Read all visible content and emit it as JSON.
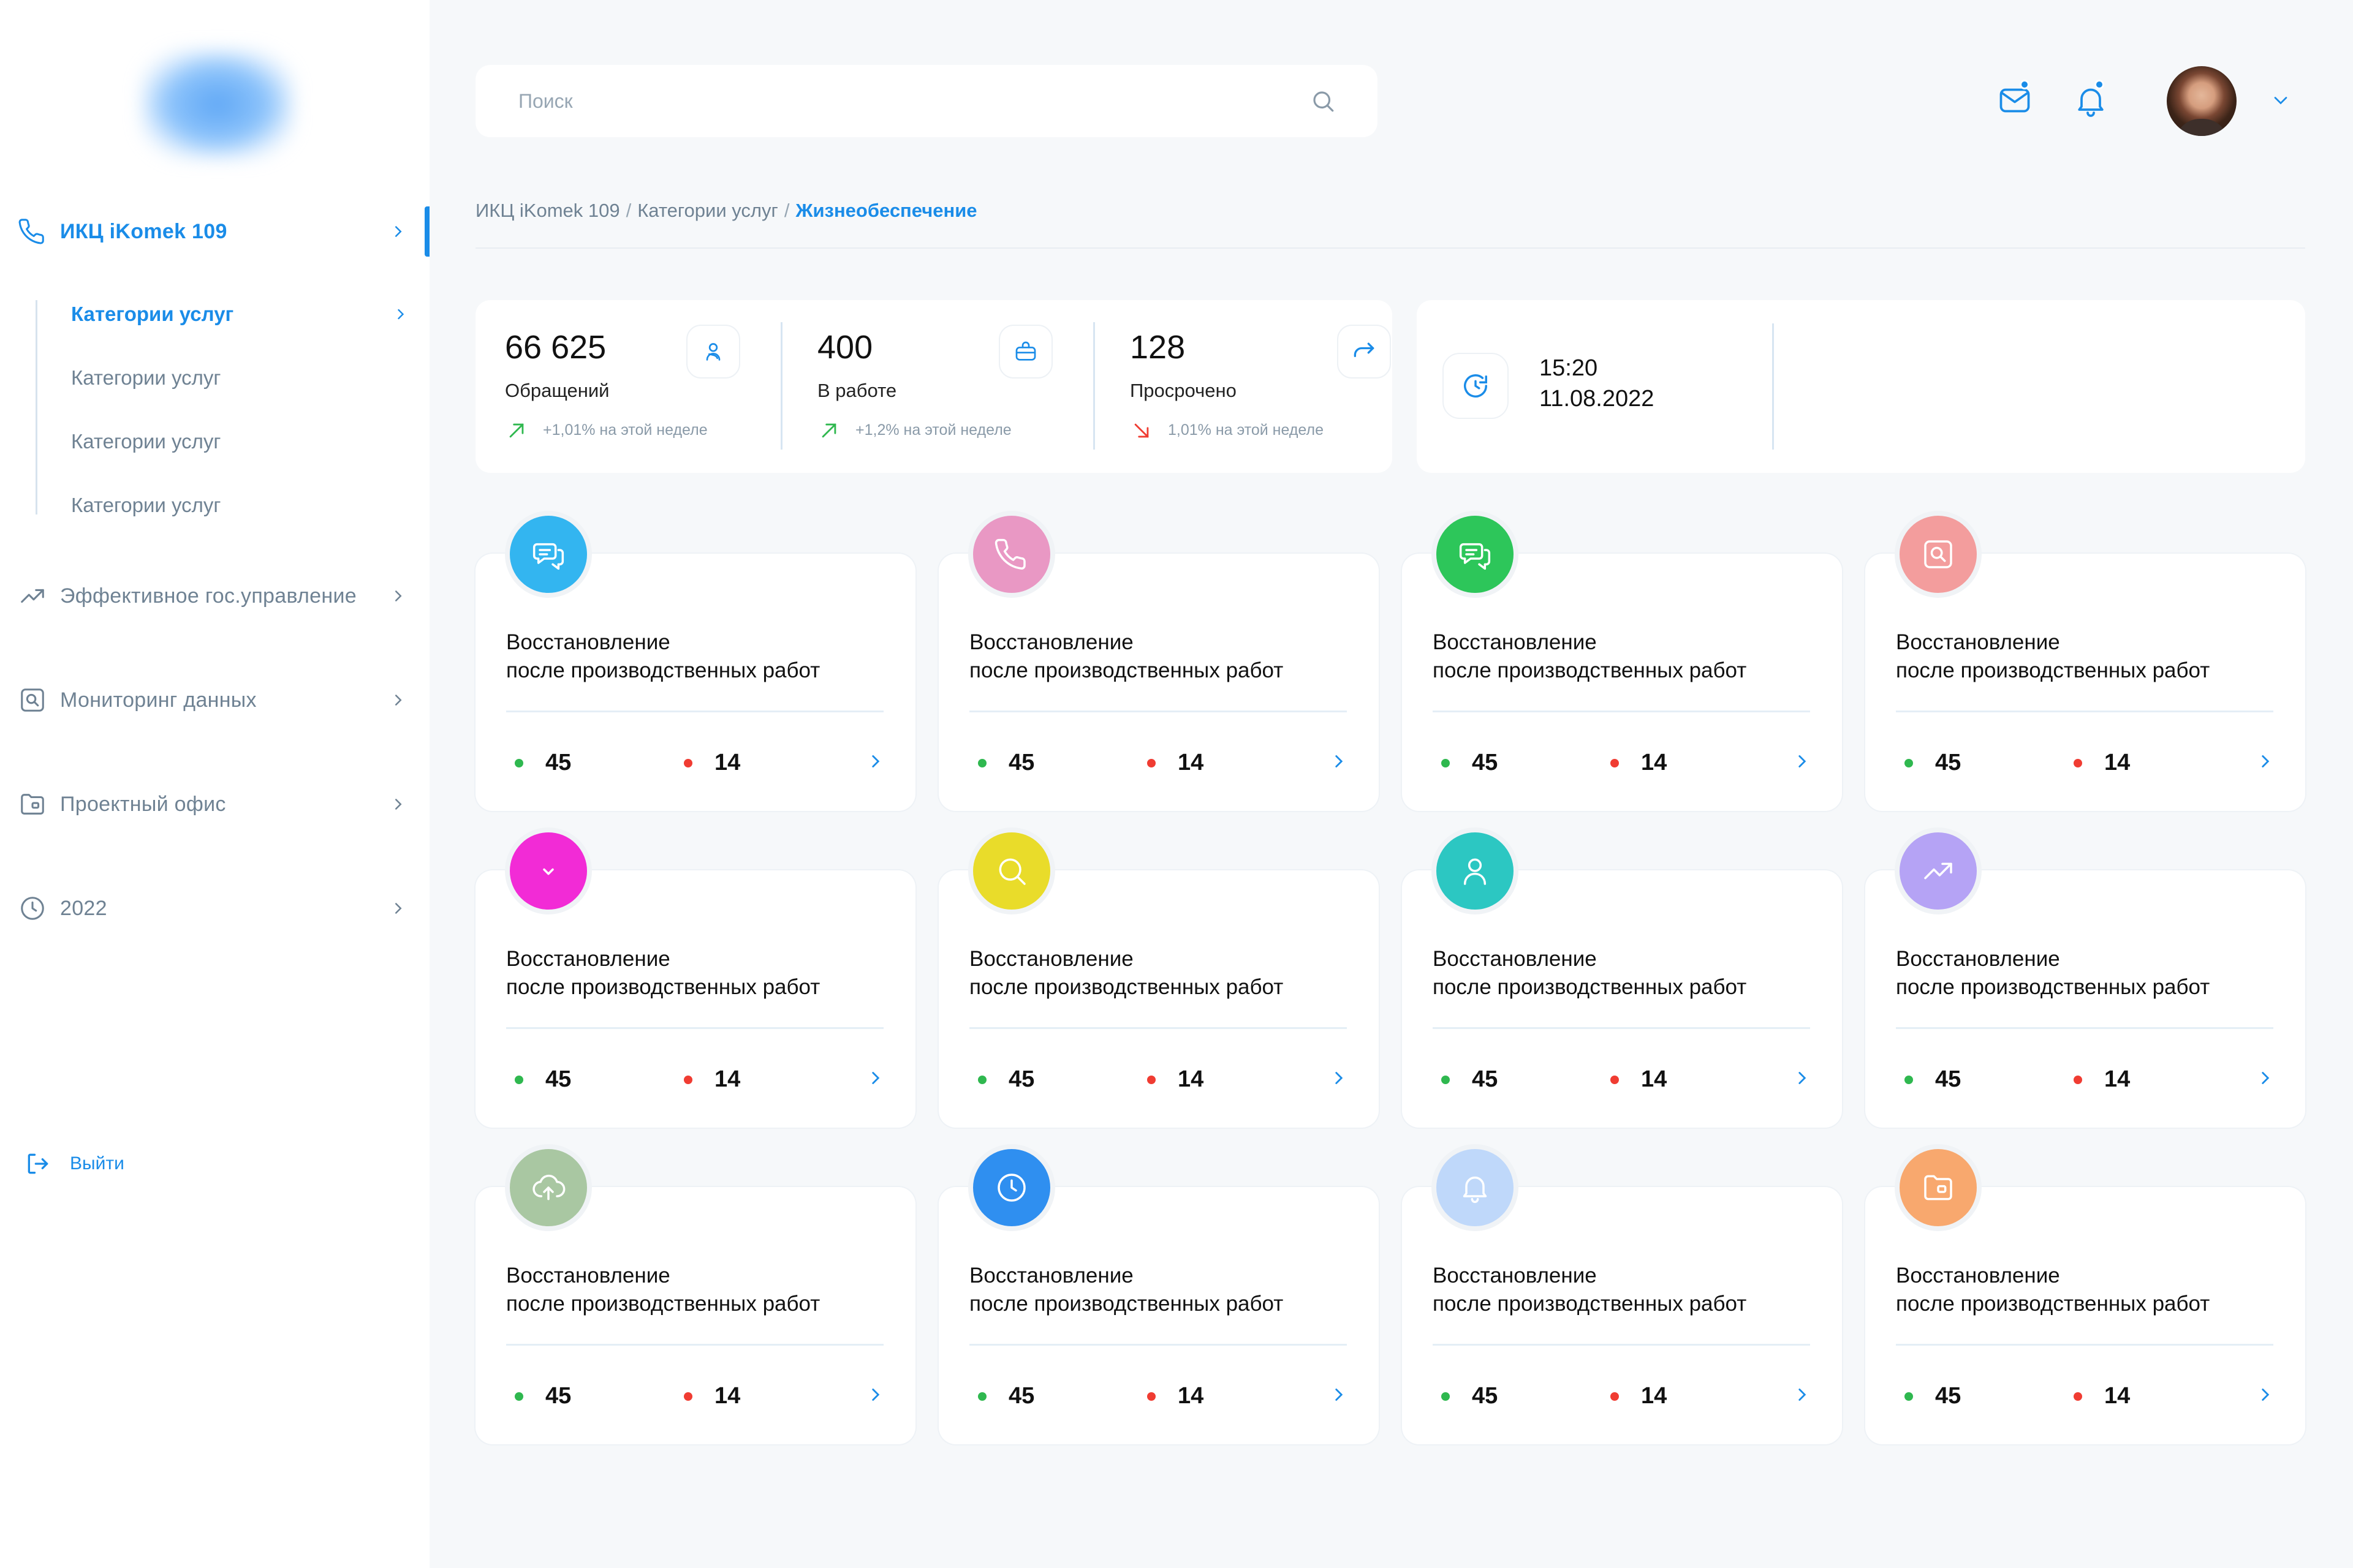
{
  "sidebar": {
    "items": [
      {
        "label": "ИКЦ iKomek 109",
        "icon": "phone-icon",
        "active": true
      },
      {
        "label": "Эффективное гос.управление",
        "icon": "trend-icon",
        "active": false
      },
      {
        "label": "Мониторинг данных",
        "icon": "monitor-search-icon",
        "active": false
      },
      {
        "label": "Проектный офис",
        "icon": "folder-icon",
        "active": false
      },
      {
        "label": "2022",
        "icon": "clock-icon",
        "active": false
      }
    ],
    "subitems": [
      {
        "label": "Категории услуг",
        "active": true
      },
      {
        "label": "Категории услуг",
        "active": false
      },
      {
        "label": "Категории услуг",
        "active": false
      },
      {
        "label": "Категории услуг",
        "active": false
      }
    ],
    "logout_label": "Выйти"
  },
  "header": {
    "search_placeholder": "Поиск"
  },
  "breadcrumb": {
    "items": [
      "ИКЦ iKomek 109",
      "Категории услуг"
    ],
    "current": "Жизнеобеспечение",
    "separator": "/"
  },
  "stats": [
    {
      "value": "66 625",
      "label": "Обращений",
      "trend": "+1,01% на этой неделе",
      "direction": "up",
      "icon": "users-icon"
    },
    {
      "value": "400",
      "label": "В работе",
      "trend": "+1,2% на этой неделе",
      "direction": "up",
      "icon": "briefcase-icon"
    },
    {
      "value": "128",
      "label": "Просрочено",
      "trend": "1,01% на этой неделе",
      "direction": "down",
      "icon": "redirect-icon"
    }
  ],
  "datetime": {
    "time": "15:20",
    "date": "11.08.2022"
  },
  "colors": {
    "accent": "#1A8CE8",
    "up": "#2FB84F",
    "down": "#F03C32"
  },
  "categories": [
    {
      "title": "Восстановление\nпосле производственных работ",
      "green": "45",
      "red": "14",
      "color": "#33B5F0",
      "icon": "chat-icon"
    },
    {
      "title": "Восстановление\nпосле производственных работ",
      "green": "45",
      "red": "14",
      "color": "#E998C4",
      "icon": "phone-icon"
    },
    {
      "title": "Восстановление\nпосле производственных работ",
      "green": "45",
      "red": "14",
      "color": "#2DC65A",
      "icon": "chat-icon"
    },
    {
      "title": "Восстановление\nпосле производственных работ",
      "green": "45",
      "red": "14",
      "color": "#F39D9D",
      "icon": "monitor-search-icon"
    },
    {
      "title": "Восстановление\nпосле производственных работ",
      "green": "45",
      "red": "14",
      "color": "#F22BD6",
      "icon": "chevron-down-icon"
    },
    {
      "title": "Восстановление\nпосле производственных работ",
      "green": "45",
      "red": "14",
      "color": "#E9DC2A",
      "icon": "search-icon"
    },
    {
      "title": "Восстановление\nпосле производственных работ",
      "green": "45",
      "red": "14",
      "color": "#2CC7C2",
      "icon": "user-icon"
    },
    {
      "title": "Восстановление\nпосле производственных работ",
      "green": "45",
      "red": "14",
      "color": "#B5A3F5",
      "icon": "trend-icon"
    },
    {
      "title": "Восстановление\nпосле производственных работ",
      "green": "45",
      "red": "14",
      "color": "#A9C7A2",
      "icon": "cloud-upload-icon"
    },
    {
      "title": "Восстановление\nпосле производственных работ",
      "green": "45",
      "red": "14",
      "color": "#2F8FF0",
      "icon": "clock-icon"
    },
    {
      "title": "Восстановление\nпосле производственных работ",
      "green": "45",
      "red": "14",
      "color": "#BFD8FA",
      "icon": "bell-icon"
    },
    {
      "title": "Восстановление\nпосле производственных работ",
      "green": "45",
      "red": "14",
      "color": "#F8A86E",
      "icon": "folder-icon"
    }
  ]
}
